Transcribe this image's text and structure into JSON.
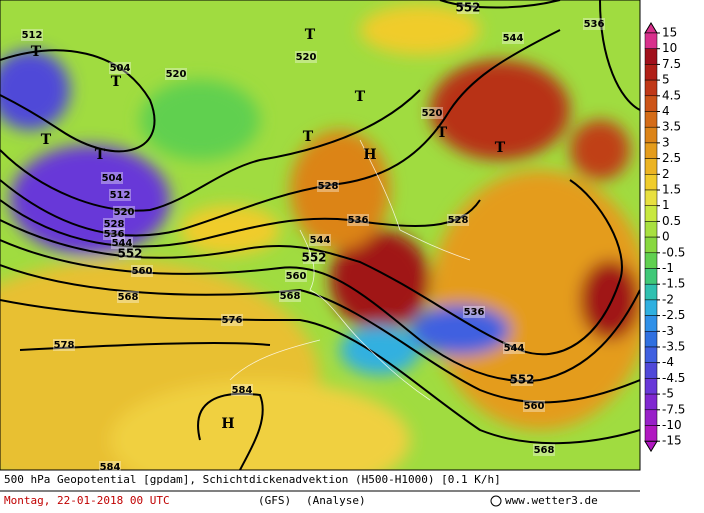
{
  "map": {
    "caption": "500 hPa Geopotential [gpdam], Schichtdickenadvektion (H500-H1000) [0.1 K/h]",
    "date": "Montag, 22-01-2018  00 UTC",
    "model": "(GFS)",
    "run": "(Analyse)",
    "source": "www.wetter3.de",
    "colorbar": {
      "labels": [
        15,
        10,
        7.5,
        5,
        4.5,
        4,
        3.5,
        3,
        2.5,
        2,
        1.5,
        1,
        0.5,
        0,
        -0.5,
        -1,
        -1.5,
        -2,
        -2.5,
        -3,
        -3.5,
        -4,
        -4.5,
        -5,
        -7.5,
        -10,
        -15
      ],
      "colors": [
        "#d8308c",
        "#a0101c",
        "#b02018",
        "#c03818",
        "#cc5418",
        "#d46c18",
        "#dc8418",
        "#e49c1c",
        "#ecb424",
        "#f0cc2c",
        "#e8e040",
        "#c8e840",
        "#a8e040",
        "#88d840",
        "#60d050",
        "#40c878",
        "#30c0b0",
        "#30b0e0",
        "#3090e8",
        "#3070e0",
        "#4060e0",
        "#5048d8",
        "#6838d8",
        "#8028d0",
        "#9820c8",
        "#b018c0"
      ]
    },
    "contour_labels": [
      "552",
      "536",
      "544",
      "512",
      "504",
      "520",
      "520",
      "520",
      "504",
      "512",
      "520",
      "528",
      "536",
      "544",
      "552",
      "528",
      "536",
      "544",
      "552",
      "528",
      "560",
      "560",
      "568",
      "568",
      "576",
      "578",
      "536",
      "544",
      "552",
      "560",
      "568",
      "584",
      "584"
    ],
    "centers": [
      "T",
      "T",
      "T",
      "T",
      "T",
      "T",
      "H",
      "T",
      "T",
      "T",
      "H"
    ]
  }
}
